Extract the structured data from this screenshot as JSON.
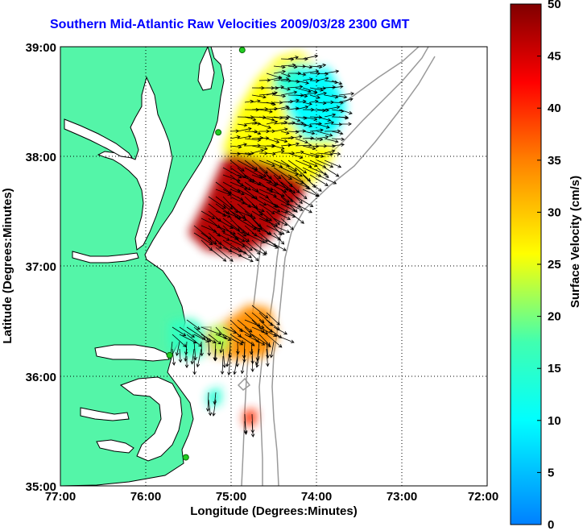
{
  "title": "Southern Mid-Atlantic Raw Velocities 2009/03/28 2300 GMT",
  "x_axis": {
    "label": "Longitude (Degrees:Minutes)",
    "ticks": [
      "77:00",
      "76:00",
      "75:00",
      "74:00",
      "73:00",
      "72:00"
    ]
  },
  "y_axis": {
    "label": "Latitude (Degrees:Minutes)",
    "ticks": [
      "39:00",
      "38:00",
      "37:00",
      "36:00",
      "35:00"
    ]
  },
  "colorbar": {
    "label": "Surface Velocity (cm/s)",
    "ticks": [
      "0",
      "5",
      "10",
      "15",
      "20",
      "25",
      "30",
      "35",
      "40",
      "45",
      "50"
    ],
    "colormap": [
      "#0080ff",
      "#00ffff",
      "#40ffb0",
      "#ffff00",
      "#ff8000",
      "#ff0000",
      "#800000"
    ]
  },
  "colors": {
    "land": "#54f5a8",
    "water": "#ffffff",
    "bathymetry": "#9a9a9a",
    "coastline": "#000000",
    "gridline": "#000000",
    "station_marker": "#22cc22"
  },
  "chart_data": {
    "type": "heatmap",
    "title": "Southern Mid-Atlantic Raw Velocities 2009/03/28 2300 GMT",
    "xlabel": "Longitude (Degrees:Minutes)",
    "ylabel": "Latitude (Degrees:Minutes)",
    "xlim": [
      -77,
      -72
    ],
    "ylim": [
      35,
      39
    ],
    "grid": true,
    "colorbar_range_cm_s": [
      0,
      50
    ],
    "colorbar_label": "Surface Velocity (cm/s)",
    "stations": [
      {
        "lon": -74.87,
        "lat": 38.97
      },
      {
        "lon": -75.15,
        "lat": 38.22
      },
      {
        "lon": -75.72,
        "lat": 36.19
      },
      {
        "lon": -75.53,
        "lat": 35.26
      }
    ],
    "velocity_regions": [
      {
        "polygon": [
          [
            -75.3,
            37.6
          ],
          [
            -75.1,
            37.95
          ],
          [
            -74.8,
            38.25
          ],
          [
            -74.35,
            38.35
          ],
          [
            -74.05,
            38.05
          ],
          [
            -74.15,
            37.65
          ],
          [
            -74.55,
            37.25
          ],
          [
            -74.9,
            37.1
          ],
          [
            -75.3,
            37.15
          ],
          [
            -75.5,
            37.3
          ]
        ],
        "speed_cm_s": 47
      },
      {
        "polygon": [
          [
            -75.1,
            38.05
          ],
          [
            -74.9,
            38.45
          ],
          [
            -74.7,
            38.7
          ],
          [
            -74.45,
            38.9
          ],
          [
            -74.2,
            38.95
          ],
          [
            -73.95,
            38.8
          ],
          [
            -73.75,
            38.4
          ],
          [
            -73.8,
            38.0
          ],
          [
            -74.05,
            37.75
          ],
          [
            -74.4,
            37.9
          ],
          [
            -74.8,
            38.0
          ]
        ],
        "speed_cm_s": 26
      },
      {
        "polygon": [
          [
            -74.25,
            38.85
          ],
          [
            -73.85,
            38.8
          ],
          [
            -73.65,
            38.45
          ],
          [
            -73.8,
            38.15
          ],
          [
            -74.15,
            38.15
          ],
          [
            -74.35,
            38.4
          ],
          [
            -74.4,
            38.7
          ]
        ],
        "speed_cm_s": 10
      },
      {
        "polygon": [
          [
            -74.5,
            38.75
          ],
          [
            -74.25,
            38.85
          ],
          [
            -74.15,
            38.7
          ],
          [
            -74.3,
            38.55
          ],
          [
            -74.5,
            38.6
          ]
        ],
        "speed_cm_s": 14
      },
      {
        "polygon": [
          [
            -75.3,
            36.4
          ],
          [
            -75.05,
            36.5
          ],
          [
            -74.8,
            36.65
          ],
          [
            -74.55,
            36.62
          ],
          [
            -74.45,
            36.35
          ],
          [
            -74.6,
            36.18
          ],
          [
            -74.9,
            36.15
          ],
          [
            -75.25,
            36.2
          ]
        ],
        "speed_cm_s": 34
      },
      {
        "polygon": [
          [
            -75.72,
            36.5
          ],
          [
            -75.45,
            36.52
          ],
          [
            -75.3,
            36.42
          ],
          [
            -75.3,
            36.2
          ],
          [
            -75.5,
            36.15
          ],
          [
            -75.72,
            36.25
          ]
        ],
        "speed_cm_s": 16
      },
      {
        "polygon": [
          [
            -75.25,
            36.45
          ],
          [
            -75.05,
            36.45
          ],
          [
            -75.02,
            36.25
          ],
          [
            -75.2,
            36.2
          ]
        ],
        "speed_cm_s": 22
      },
      {
        "polygon": [
          [
            -75.28,
            35.85
          ],
          [
            -75.12,
            35.9
          ],
          [
            -75.12,
            35.75
          ],
          [
            -75.28,
            35.72
          ]
        ],
        "speed_cm_s": 14
      },
      {
        "polygon": [
          [
            -74.85,
            35.68
          ],
          [
            -74.7,
            35.7
          ],
          [
            -74.72,
            35.55
          ],
          [
            -74.85,
            35.55
          ]
        ],
        "speed_cm_s": 40
      }
    ]
  }
}
